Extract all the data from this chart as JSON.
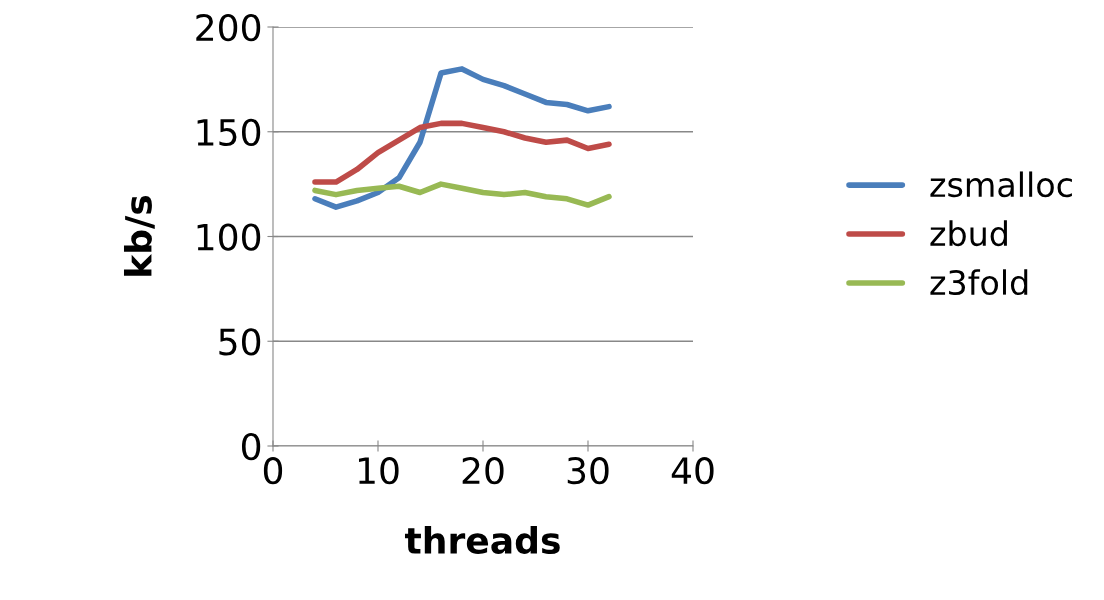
{
  "chart_data": {
    "type": "line",
    "xlabel": "threads",
    "ylabel": "kb/s",
    "x": [
      4,
      6,
      8,
      10,
      12,
      14,
      16,
      18,
      20,
      22,
      24,
      26,
      28,
      30,
      32
    ],
    "series": [
      {
        "name": "zsmalloc",
        "color": "#4a7ebb",
        "values": [
          118,
          114,
          117,
          121,
          128,
          145,
          178,
          180,
          175,
          172,
          168,
          164,
          163,
          160,
          162
        ]
      },
      {
        "name": "zbud",
        "color": "#be4b48",
        "values": [
          126,
          126,
          132,
          140,
          146,
          152,
          154,
          154,
          152,
          150,
          147,
          145,
          146,
          142,
          144
        ]
      },
      {
        "name": "z3fold",
        "color": "#98b954",
        "values": [
          122,
          120,
          122,
          123,
          124,
          121,
          125,
          123,
          121,
          120,
          121,
          119,
          118,
          115,
          119
        ]
      }
    ],
    "xlim": [
      0,
      40
    ],
    "xticks": [
      0,
      10,
      20,
      30,
      40
    ],
    "ylim": [
      0,
      200
    ],
    "yticks": [
      0,
      50,
      100,
      150,
      200
    ],
    "grid": "y",
    "legend": "right",
    "marker": "none",
    "line_style": "solid"
  }
}
